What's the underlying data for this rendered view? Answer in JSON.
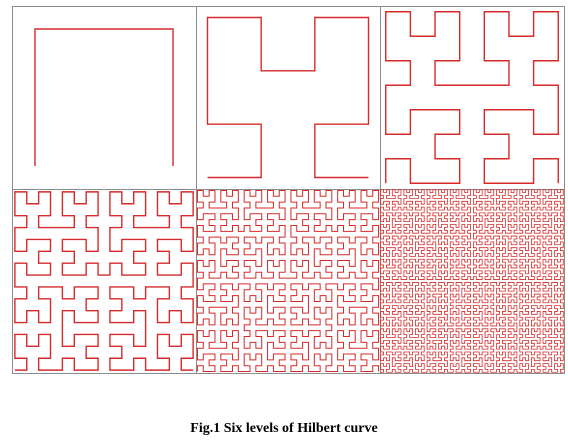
{
  "figure": {
    "caption": "Fig.1 Six levels of Hilbert curve",
    "panel_levels": [
      1,
      2,
      3,
      4,
      5,
      6
    ],
    "curve_color": "#d42a2a",
    "frame_color": "#8c8c8c"
  }
}
